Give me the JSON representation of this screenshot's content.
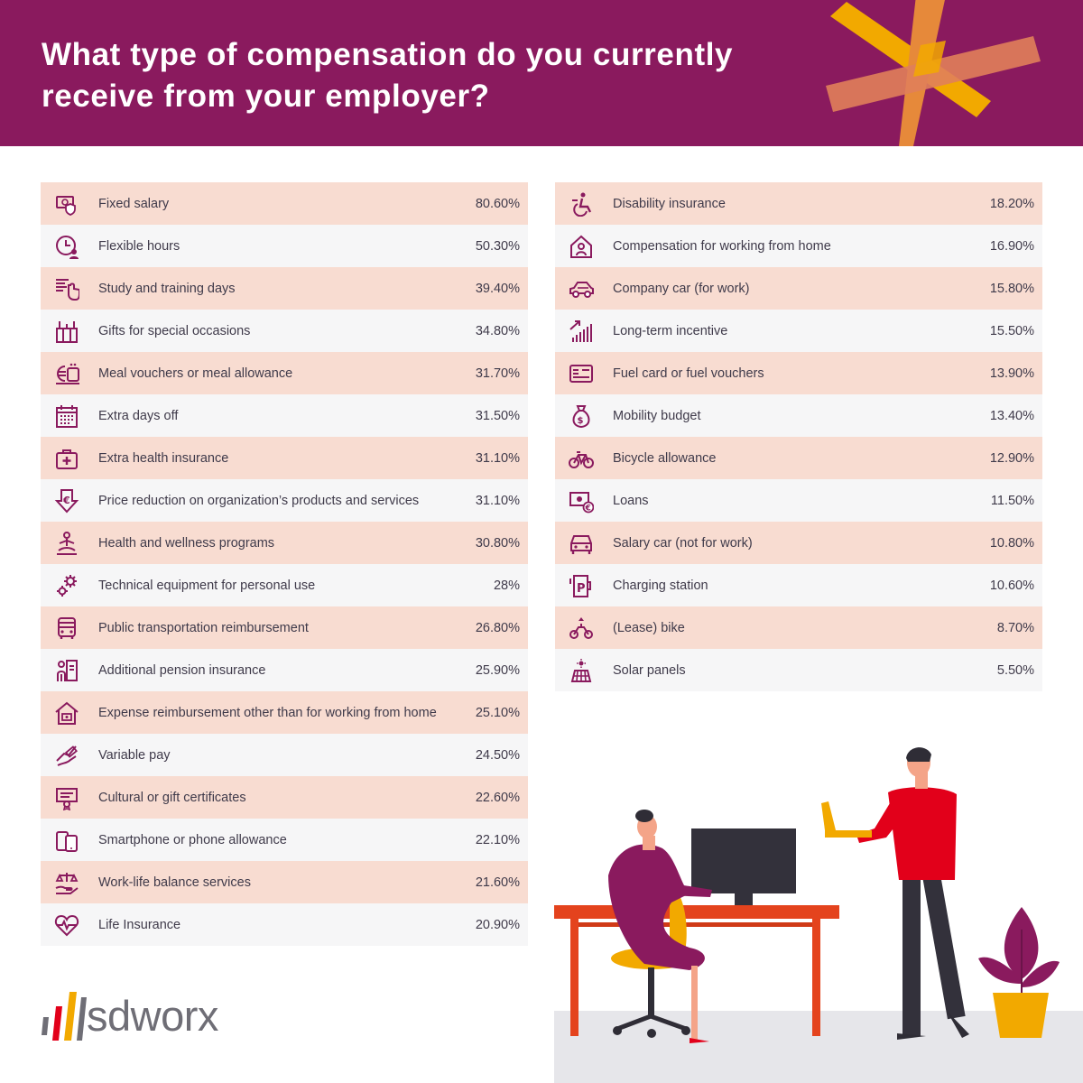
{
  "title": "What type of compensation do you currently\nreceive from your employer?",
  "brand": {
    "name": "sdworx",
    "colors": {
      "primary": "#8a1a5e",
      "accent": "#f2a900",
      "red": "#e2001a"
    }
  },
  "left_column": [
    {
      "icon": "money-shield-icon",
      "label": "Fixed salary",
      "value": "80.60%"
    },
    {
      "icon": "clock-person-icon",
      "label": "Flexible hours",
      "value": "50.30%"
    },
    {
      "icon": "presentation-hand-icon",
      "label": "Study and training days",
      "value": "39.40%"
    },
    {
      "icon": "gift-icon",
      "label": "Gifts for special occasions",
      "value": "34.80%"
    },
    {
      "icon": "meal-voucher-icon",
      "label": "Meal vouchers or meal allowance",
      "value": "31.70%"
    },
    {
      "icon": "calendar-icon",
      "label": "Extra days off",
      "value": "31.50%"
    },
    {
      "icon": "medical-kit-icon",
      "label": "Extra health insurance",
      "value": "31.10%"
    },
    {
      "icon": "euro-down-arrow-icon",
      "label": "Price reduction on organization’s products and services",
      "value": "31.10%"
    },
    {
      "icon": "meditation-icon",
      "label": "Health and wellness programs",
      "value": "30.80%"
    },
    {
      "icon": "gears-icon",
      "label": "Technical equipment for personal use",
      "value": "28%"
    },
    {
      "icon": "bus-icon",
      "label": "Public transportation reimbursement",
      "value": "26.80%"
    },
    {
      "icon": "pension-person-icon",
      "label": "Additional pension insurance",
      "value": "25.90%"
    },
    {
      "icon": "house-expense-icon",
      "label": "Expense reimbursement other than for working from home",
      "value": "25.10%"
    },
    {
      "icon": "variable-pay-icon",
      "label": "Variable pay",
      "value": "24.50%"
    },
    {
      "icon": "certificate-icon",
      "label": "Cultural or gift certificates",
      "value": "22.60%"
    },
    {
      "icon": "smartphone-icon",
      "label": "Smartphone or phone allowance",
      "value": "22.10%"
    },
    {
      "icon": "balance-hand-icon",
      "label": "Work-life balance services",
      "value": "21.60%"
    },
    {
      "icon": "heart-pulse-icon",
      "label": "Life Insurance",
      "value": "20.90%"
    }
  ],
  "right_column": [
    {
      "icon": "wheelchair-icon",
      "label": "Disability insurance",
      "value": "18.20%"
    },
    {
      "icon": "home-person-icon",
      "label": "Compensation for working from home",
      "value": "16.90%"
    },
    {
      "icon": "car-icon",
      "label": "Company car (for work)",
      "value": "15.80%"
    },
    {
      "icon": "growth-bars-icon",
      "label": "Long-term incentive",
      "value": "15.50%"
    },
    {
      "icon": "fuel-card-icon",
      "label": "Fuel card or fuel vouchers",
      "value": "13.90%"
    },
    {
      "icon": "money-bag-icon",
      "label": "Mobility budget",
      "value": "13.40%"
    },
    {
      "icon": "bicycle-icon",
      "label": "Bicycle allowance",
      "value": "12.90%"
    },
    {
      "icon": "euro-banknote-icon",
      "label": "Loans",
      "value": "11.50%"
    },
    {
      "icon": "car-front-icon",
      "label": "Salary car (not for work)",
      "value": "10.80%"
    },
    {
      "icon": "charging-station-icon",
      "label": "Charging station",
      "value": "10.60%"
    },
    {
      "icon": "lease-bike-icon",
      "label": "(Lease) bike",
      "value": "8.70%"
    },
    {
      "icon": "solar-panel-icon",
      "label": "Solar panels",
      "value": "5.50%"
    }
  ]
}
